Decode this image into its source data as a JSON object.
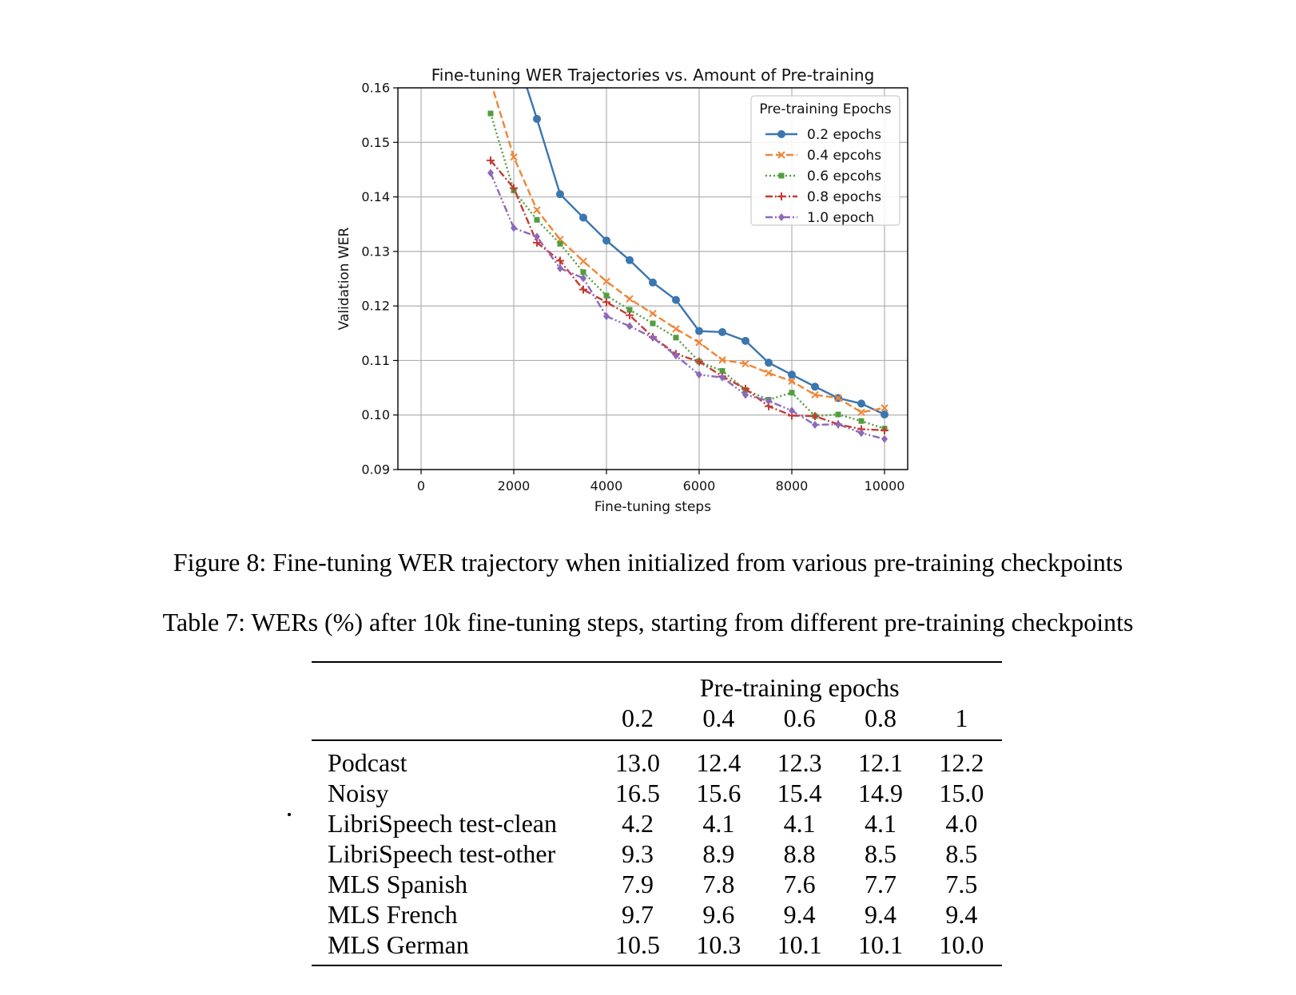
{
  "chart_data": {
    "type": "line",
    "title": "Fine-tuning WER Trajectories vs. Amount of Pre-training",
    "xlabel": "Fine-tuning steps",
    "ylabel": "Validation WER",
    "xlim": [
      -500,
      10500
    ],
    "ylim": [
      0.09,
      0.16
    ],
    "xticks": [
      "0",
      "2000",
      "4000",
      "6000",
      "8000",
      "10000"
    ],
    "yticks": [
      "0.09",
      "0.10",
      "0.11",
      "0.12",
      "0.13",
      "0.14",
      "0.15",
      "0.16"
    ],
    "grid": true,
    "legend_title": "Pre-training Epochs",
    "legend_position": "top-right",
    "series": [
      {
        "name": "0.2 epochs",
        "color": "#3a76af",
        "dash": "",
        "marker": "circle",
        "x": [
          2000,
          2500,
          3000,
          3500,
          4000,
          4500,
          5000,
          5500,
          6000,
          6500,
          7000,
          7500,
          8000,
          8500,
          9000,
          9500,
          10000
        ],
        "y": [
          0.1675,
          0.1543,
          0.1405,
          0.1362,
          0.132,
          0.1284,
          0.1243,
          0.1211,
          0.1154,
          0.1152,
          0.1136,
          0.1096,
          0.1074,
          0.1052,
          0.1031,
          0.1021,
          0.1001
        ]
      },
      {
        "name": "0.4 epcohs",
        "color": "#ef8636",
        "dash": "9,4",
        "marker": "x",
        "x": [
          1500,
          2000,
          2500,
          3000,
          3500,
          4000,
          4500,
          5000,
          5500,
          6000,
          6500,
          7000,
          7500,
          8000,
          8500,
          9000,
          9500,
          10000
        ],
        "y": [
          0.1612,
          0.1473,
          0.1376,
          0.1322,
          0.1282,
          0.1245,
          0.1213,
          0.1186,
          0.1158,
          0.1133,
          0.1101,
          0.1094,
          0.1077,
          0.1062,
          0.1037,
          0.1031,
          0.1005,
          0.1013
        ]
      },
      {
        "name": "0.6 epcohs",
        "color": "#519e3e",
        "dash": "2,3",
        "marker": "square",
        "x": [
          1500,
          2000,
          2500,
          3000,
          3500,
          4000,
          4500,
          5000,
          5500,
          6000,
          6500,
          7000,
          7500,
          8000,
          8500,
          9000,
          9500,
          10000
        ],
        "y": [
          0.1553,
          0.1412,
          0.1358,
          0.1314,
          0.1262,
          0.1219,
          0.1193,
          0.1168,
          0.1142,
          0.1098,
          0.1081,
          0.1046,
          0.1028,
          0.1041,
          0.0998,
          0.1001,
          0.0989,
          0.0975
        ]
      },
      {
        "name": "0.8 epochs",
        "color": "#c53a32",
        "dash": "9,3,2,3",
        "marker": "plus",
        "x": [
          1500,
          2000,
          2500,
          3000,
          3500,
          4000,
          4500,
          5000,
          5500,
          6000,
          6500,
          7000,
          7500,
          8000,
          8500,
          9000,
          9500,
          10000
        ],
        "y": [
          0.1467,
          0.1416,
          0.1316,
          0.1283,
          0.123,
          0.1207,
          0.1183,
          0.1143,
          0.1112,
          0.1098,
          0.1071,
          0.1048,
          0.1016,
          0.0999,
          0.0998,
          0.0983,
          0.0974,
          0.0972
        ]
      },
      {
        "name": "1.0 epoch",
        "color": "#8d69b8",
        "dash": "9,3,2,3,2,3",
        "marker": "diamond",
        "x": [
          1500,
          2000,
          2500,
          3000,
          3500,
          4000,
          4500,
          5000,
          5500,
          6000,
          6500,
          7000,
          7500,
          8000,
          8500,
          9000,
          9500,
          10000
        ],
        "y": [
          0.1444,
          0.1343,
          0.1327,
          0.1269,
          0.1251,
          0.1181,
          0.1163,
          0.1142,
          0.1109,
          0.1074,
          0.1069,
          0.1037,
          0.1026,
          0.1008,
          0.0982,
          0.0983,
          0.0967,
          0.0956
        ]
      }
    ]
  },
  "figure_caption": "Figure 8: Fine-tuning WER trajectory when initialized from various pre-training checkpoints",
  "table_caption": "Table 7: WERs (%) after 10k fine-tuning steps, starting from different pre-training checkpoints",
  "table": {
    "group_header": "Pre-training epochs",
    "columns": [
      "0.2",
      "0.4",
      "0.6",
      "0.8",
      "1"
    ],
    "rows": [
      {
        "label": "Podcast",
        "values": [
          "13.0",
          "12.4",
          "12.3",
          "12.1",
          "12.2"
        ]
      },
      {
        "label": "Noisy",
        "values": [
          "16.5",
          "15.6",
          "15.4",
          "14.9",
          "15.0"
        ]
      },
      {
        "label": "LibriSpeech test-clean",
        "values": [
          "4.2",
          "4.1",
          "4.1",
          "4.1",
          "4.0"
        ]
      },
      {
        "label": "LibriSpeech test-other",
        "values": [
          "9.3",
          "8.9",
          "8.8",
          "8.5",
          "8.5"
        ]
      },
      {
        "label": "MLS Spanish",
        "values": [
          "7.9",
          "7.8",
          "7.6",
          "7.7",
          "7.5"
        ]
      },
      {
        "label": "MLS French",
        "values": [
          "9.7",
          "9.6",
          "9.4",
          "9.4",
          "9.4"
        ]
      },
      {
        "label": "MLS German",
        "values": [
          "10.5",
          "10.3",
          "10.1",
          "10.1",
          "10.0"
        ]
      }
    ]
  }
}
